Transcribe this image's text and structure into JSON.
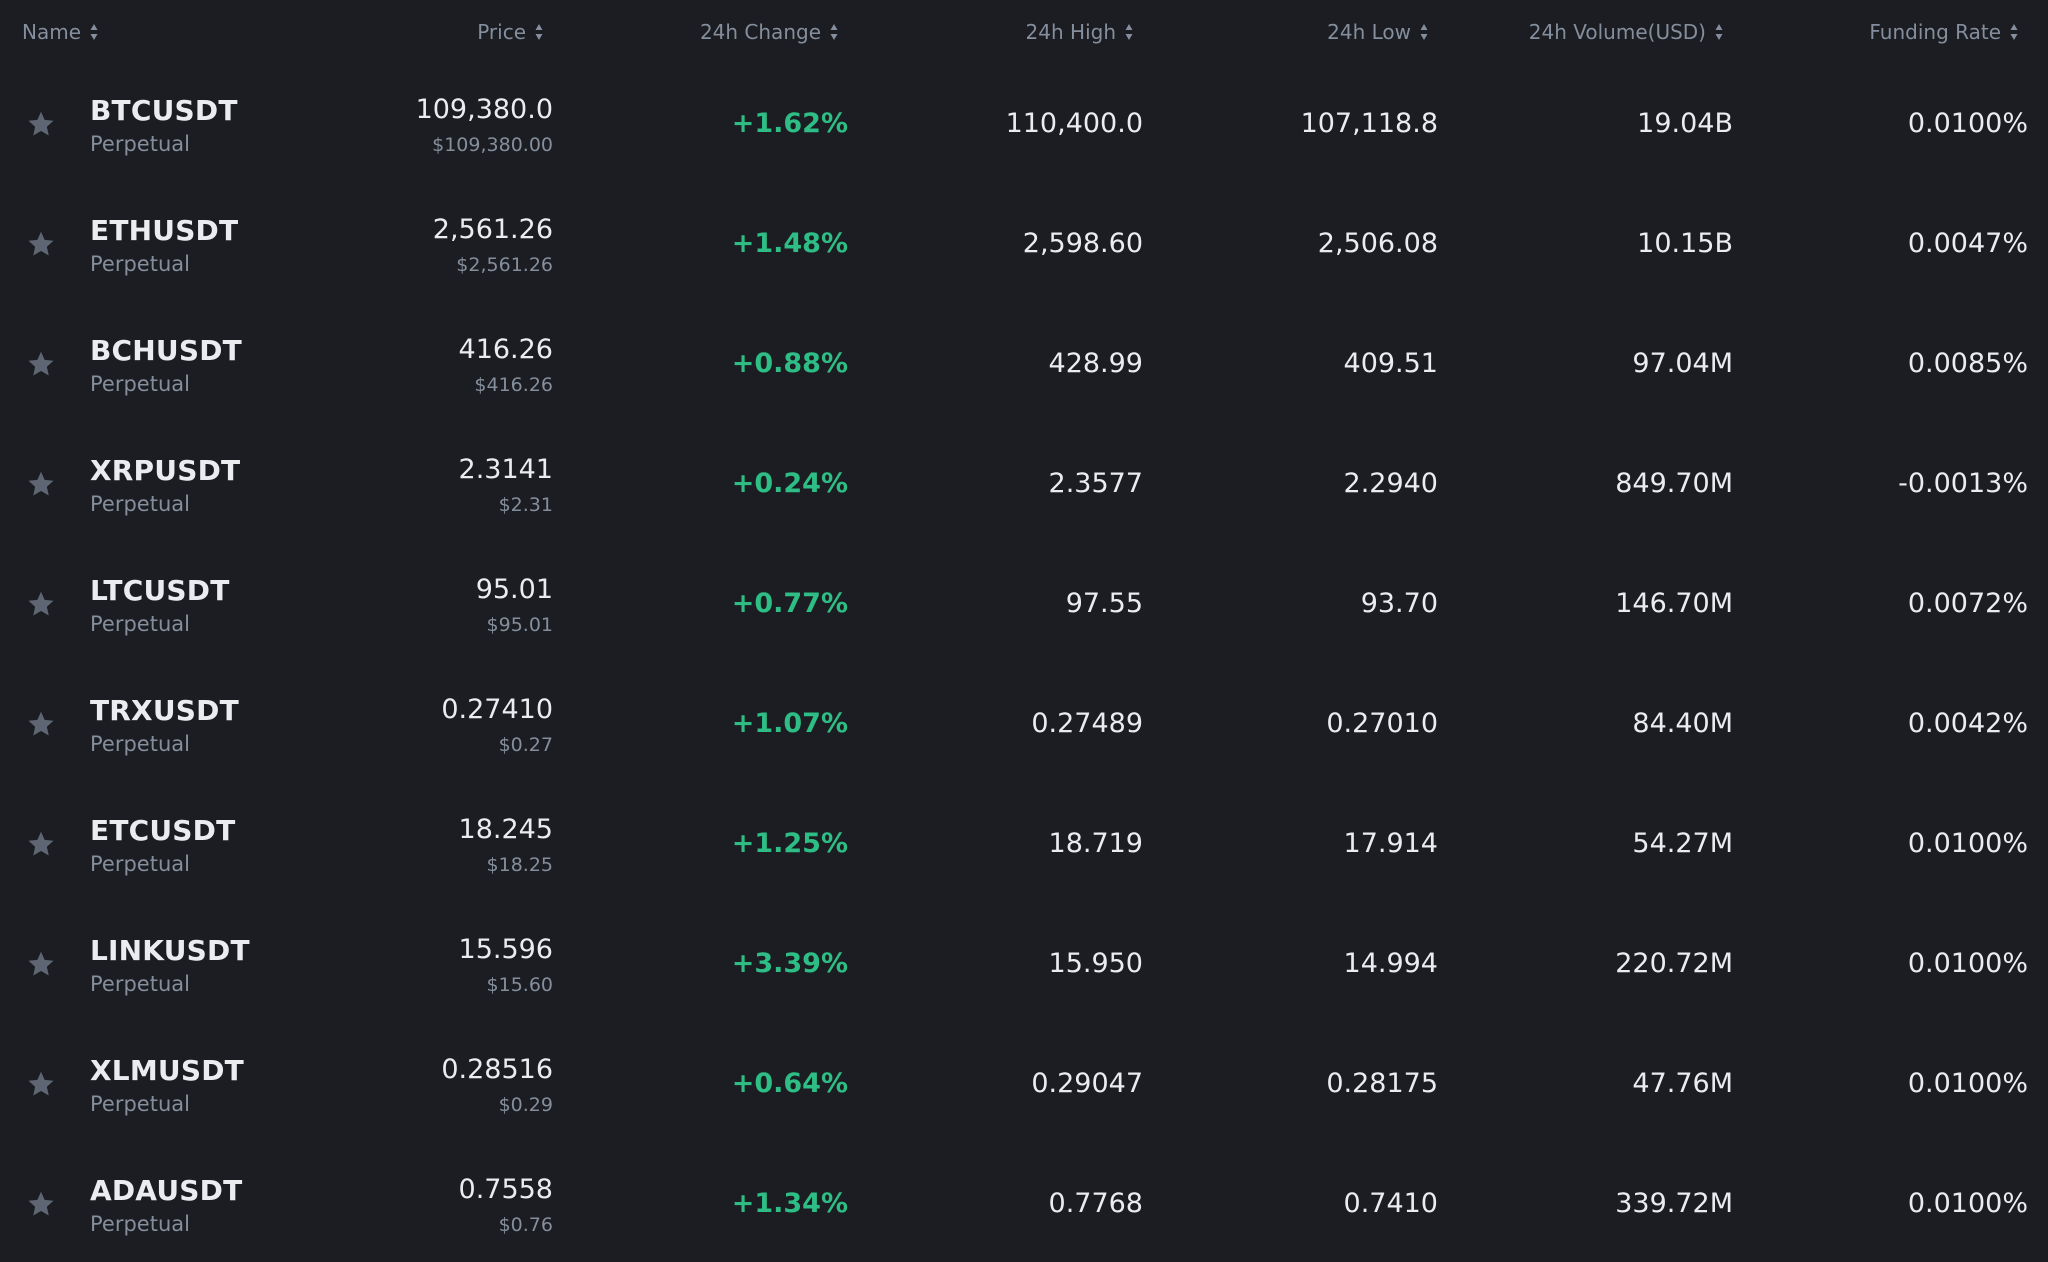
{
  "colors": {
    "background": "#1b1d22",
    "text_primary": "#eaecef",
    "text_secondary": "#848e9c",
    "positive": "#2ebd85",
    "star": "#5e6673"
  },
  "headers": {
    "name": "Name",
    "price": "Price",
    "change": "24h Change",
    "high": "24h High",
    "low": "24h Low",
    "volume": "24h Volume(USD)",
    "funding": "Funding Rate"
  },
  "rows": [
    {
      "symbol": "BTCUSDT",
      "type": "Perpetual",
      "price": "109,380.0",
      "price_usd": "$109,380.00",
      "change": "+1.62%",
      "high": "110,400.0",
      "low": "107,118.8",
      "volume": "19.04B",
      "funding": "0.0100%"
    },
    {
      "symbol": "ETHUSDT",
      "type": "Perpetual",
      "price": "2,561.26",
      "price_usd": "$2,561.26",
      "change": "+1.48%",
      "high": "2,598.60",
      "low": "2,506.08",
      "volume": "10.15B",
      "funding": "0.0047%"
    },
    {
      "symbol": "BCHUSDT",
      "type": "Perpetual",
      "price": "416.26",
      "price_usd": "$416.26",
      "change": "+0.88%",
      "high": "428.99",
      "low": "409.51",
      "volume": "97.04M",
      "funding": "0.0085%"
    },
    {
      "symbol": "XRPUSDT",
      "type": "Perpetual",
      "price": "2.3141",
      "price_usd": "$2.31",
      "change": "+0.24%",
      "high": "2.3577",
      "low": "2.2940",
      "volume": "849.70M",
      "funding": "-0.0013%"
    },
    {
      "symbol": "LTCUSDT",
      "type": "Perpetual",
      "price": "95.01",
      "price_usd": "$95.01",
      "change": "+0.77%",
      "high": "97.55",
      "low": "93.70",
      "volume": "146.70M",
      "funding": "0.0072%"
    },
    {
      "symbol": "TRXUSDT",
      "type": "Perpetual",
      "price": "0.27410",
      "price_usd": "$0.27",
      "change": "+1.07%",
      "high": "0.27489",
      "low": "0.27010",
      "volume": "84.40M",
      "funding": "0.0042%"
    },
    {
      "symbol": "ETCUSDT",
      "type": "Perpetual",
      "price": "18.245",
      "price_usd": "$18.25",
      "change": "+1.25%",
      "high": "18.719",
      "low": "17.914",
      "volume": "54.27M",
      "funding": "0.0100%"
    },
    {
      "symbol": "LINKUSDT",
      "type": "Perpetual",
      "price": "15.596",
      "price_usd": "$15.60",
      "change": "+3.39%",
      "high": "15.950",
      "low": "14.994",
      "volume": "220.72M",
      "funding": "0.0100%"
    },
    {
      "symbol": "XLMUSDT",
      "type": "Perpetual",
      "price": "0.28516",
      "price_usd": "$0.29",
      "change": "+0.64%",
      "high": "0.29047",
      "low": "0.28175",
      "volume": "47.76M",
      "funding": "0.0100%"
    },
    {
      "symbol": "ADAUSDT",
      "type": "Perpetual",
      "price": "0.7558",
      "price_usd": "$0.76",
      "change": "+1.34%",
      "high": "0.7768",
      "low": "0.7410",
      "volume": "339.72M",
      "funding": "0.0100%"
    }
  ]
}
